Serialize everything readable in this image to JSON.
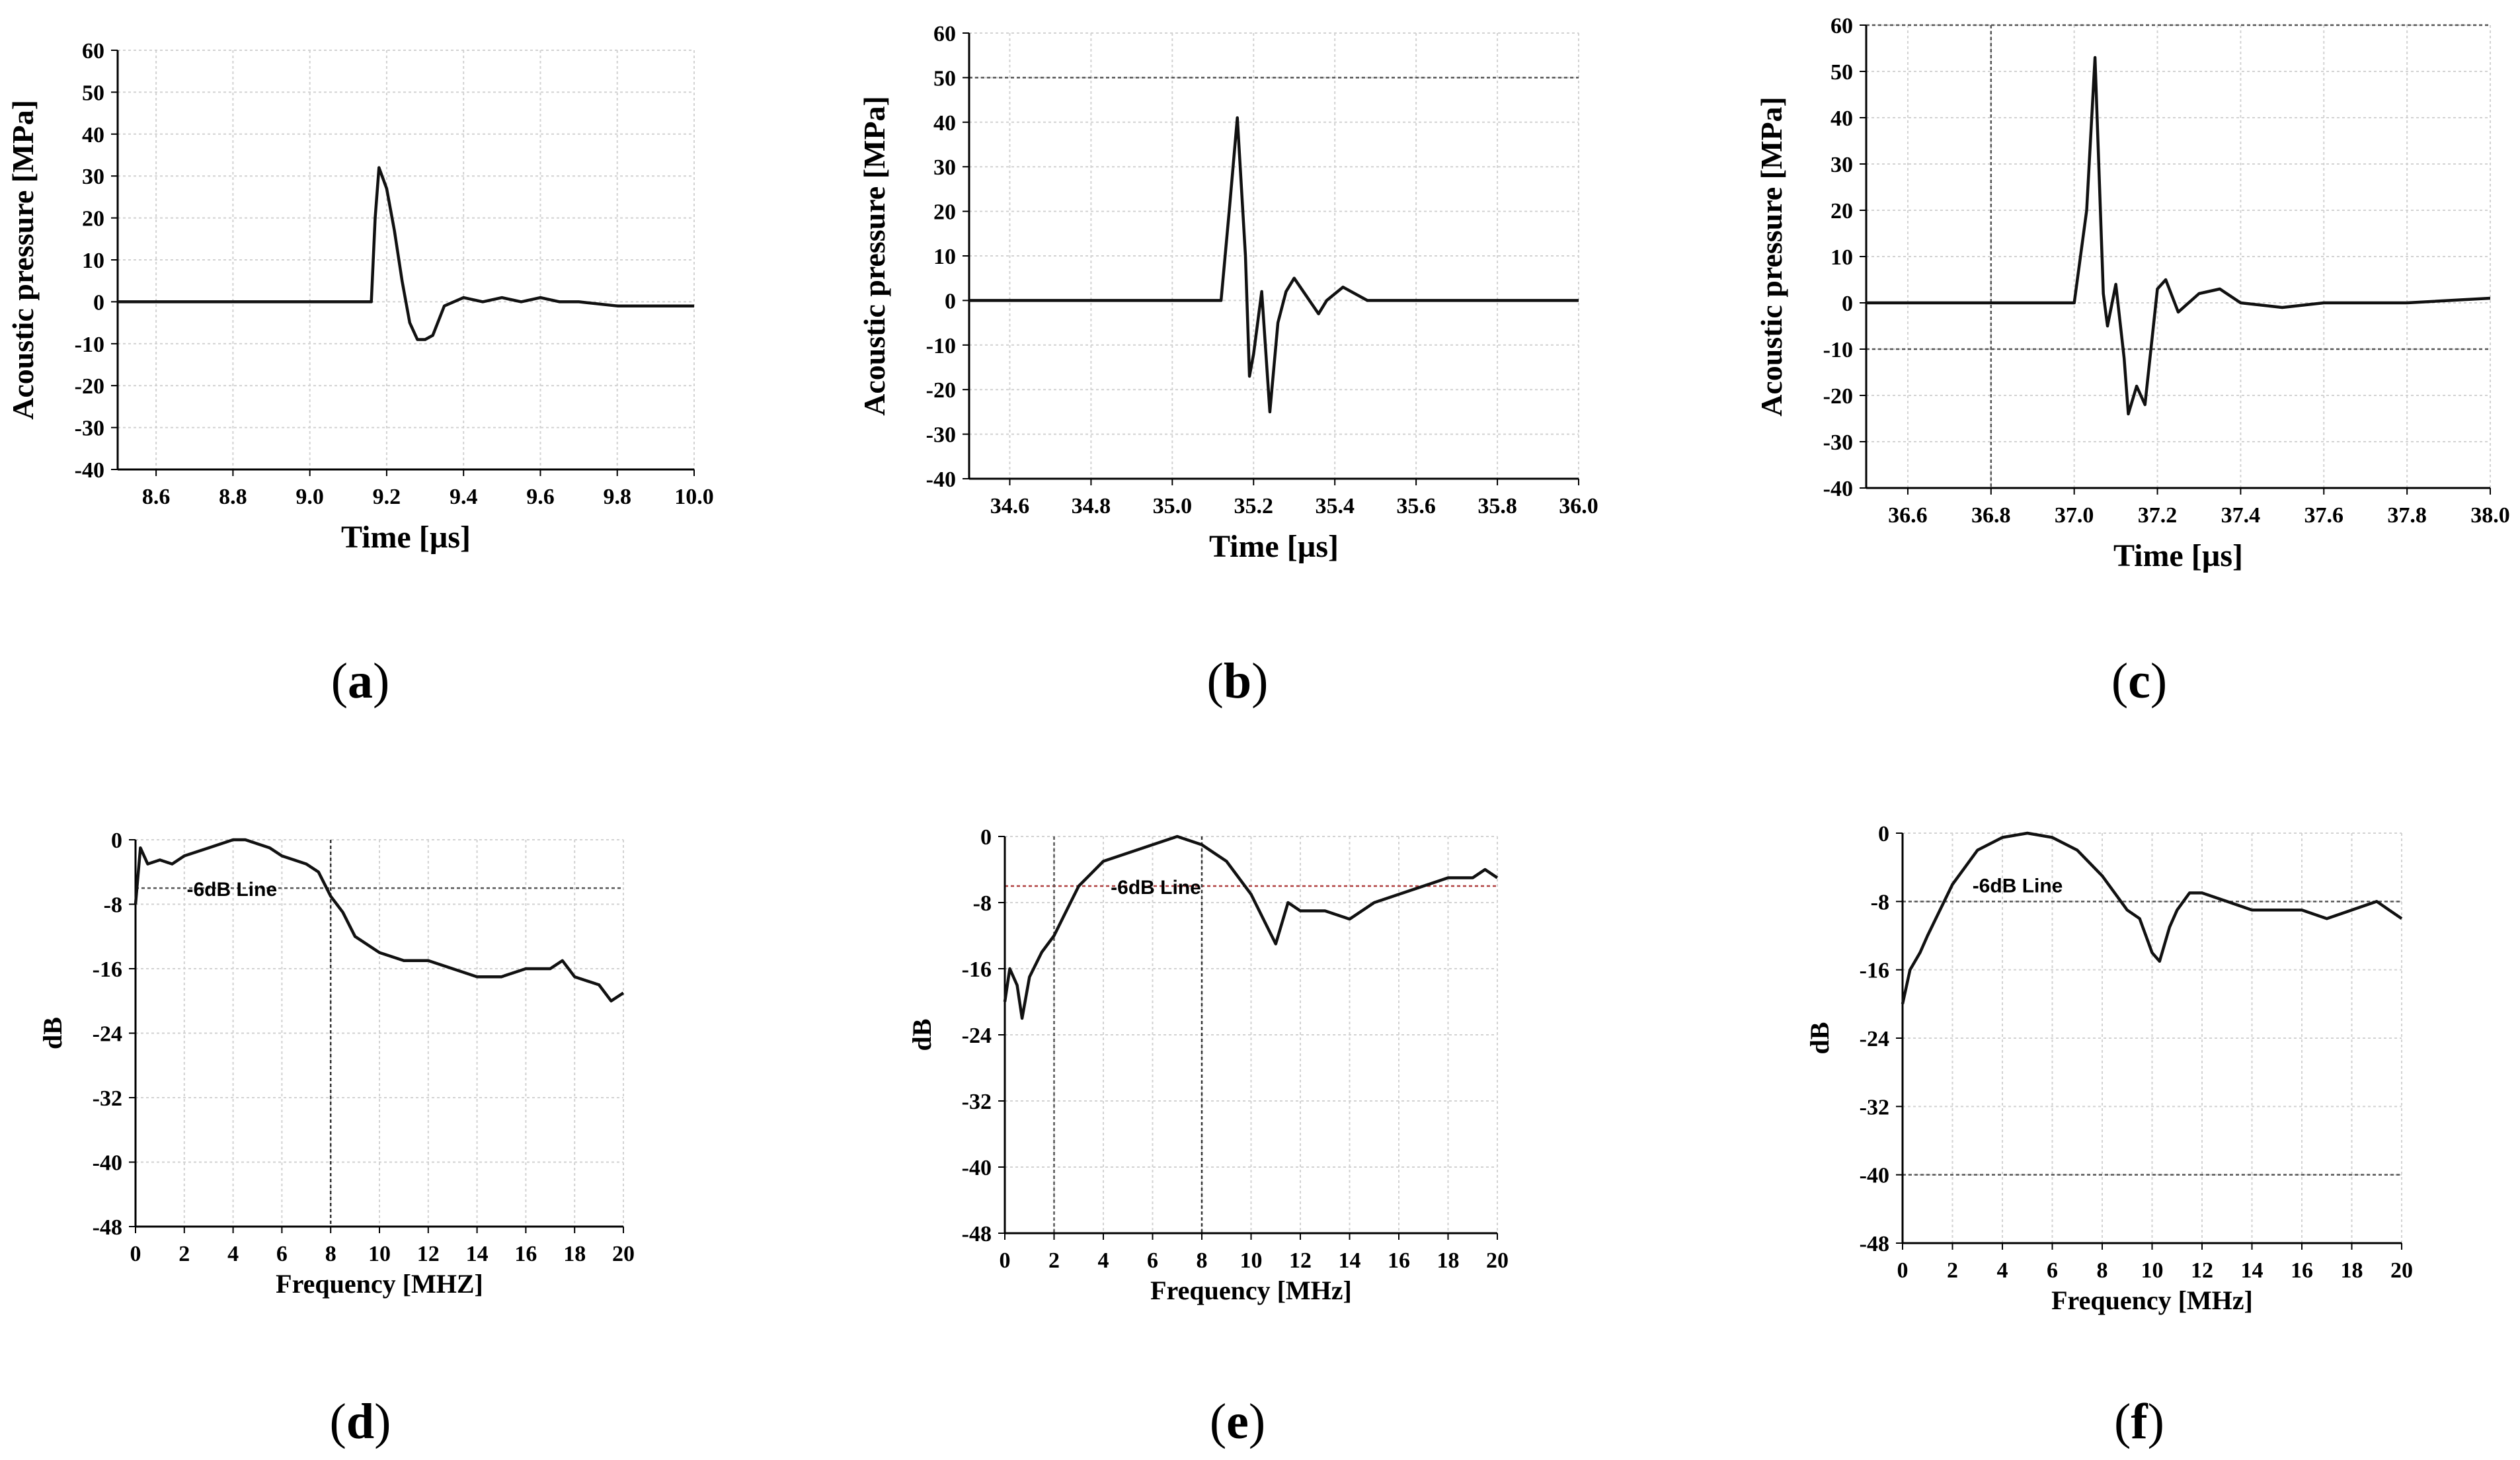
{
  "figure": {
    "panels": [
      {
        "id": "a",
        "label": "(a)",
        "letter": "a"
      },
      {
        "id": "b",
        "label": "(b)",
        "letter": "b"
      },
      {
        "id": "c",
        "label": "(c)",
        "letter": "c"
      },
      {
        "id": "d",
        "label": "(d)",
        "letter": "d"
      },
      {
        "id": "e",
        "label": "(e)",
        "letter": "e"
      },
      {
        "id": "f",
        "label": "(f)",
        "letter": "f"
      }
    ]
  },
  "chart_data": [
    {
      "id": "a",
      "type": "line",
      "title": "",
      "xlabel": "Time [µs]",
      "ylabel": "Acoustic pressure [MPa]",
      "xlim": [
        8.5,
        10.0
      ],
      "ylim": [
        -40,
        60
      ],
      "xticks": [
        8.6,
        8.8,
        9.0,
        9.2,
        9.4,
        9.6,
        9.8,
        10.0
      ],
      "xtick_labels": [
        "8.6",
        "8.8",
        "9.0",
        "9.2",
        "9.4",
        "9.6",
        "9.8",
        "10.0"
      ],
      "yticks": [
        -40,
        -30,
        -20,
        -10,
        0,
        10,
        20,
        30,
        40,
        50,
        60
      ],
      "ytick_labels": [
        "-40",
        "-30",
        "-20",
        "-10",
        "0",
        "10",
        "20",
        "30",
        "40",
        "50",
        "60"
      ],
      "grid": true,
      "series": [
        {
          "name": "pressure",
          "x": [
            8.5,
            8.8,
            9.0,
            9.1,
            9.16,
            9.17,
            9.18,
            9.2,
            9.22,
            9.24,
            9.26,
            9.28,
            9.3,
            9.32,
            9.35,
            9.4,
            9.45,
            9.5,
            9.55,
            9.6,
            9.65,
            9.7,
            9.8,
            9.9,
            10.0
          ],
          "y": [
            0,
            0,
            0,
            0,
            0,
            20,
            32,
            27,
            17,
            5,
            -5,
            -9,
            -9,
            -8,
            -1,
            1,
            0,
            1,
            0,
            1,
            0,
            0,
            -1,
            -1,
            -1
          ]
        }
      ],
      "hlines": [],
      "vlines": [],
      "annotations": []
    },
    {
      "id": "b",
      "type": "line",
      "title": "",
      "xlabel": "Time [µs]",
      "ylabel": "Acoustic pressure [MPa]",
      "xlim": [
        34.5,
        36.0
      ],
      "ylim": [
        -40,
        60
      ],
      "xticks": [
        34.6,
        34.8,
        35.0,
        35.2,
        35.4,
        35.6,
        35.8,
        36.0
      ],
      "xtick_labels": [
        "34.6",
        "34.8",
        "35.0",
        "35.2",
        "35.4",
        "35.6",
        "35.8",
        "36.0"
      ],
      "yticks": [
        -40,
        -30,
        -20,
        -10,
        0,
        10,
        20,
        30,
        40,
        50,
        60
      ],
      "ytick_labels": [
        "-40",
        "-30",
        "-20",
        "-10",
        "0",
        "10",
        "20",
        "30",
        "40",
        "50",
        "60"
      ],
      "grid": true,
      "series": [
        {
          "name": "pressure",
          "x": [
            34.5,
            34.7,
            34.9,
            35.05,
            35.12,
            35.14,
            35.16,
            35.18,
            35.19,
            35.2,
            35.22,
            35.24,
            35.26,
            35.28,
            35.3,
            35.33,
            35.36,
            35.38,
            35.42,
            35.48,
            35.6,
            35.75,
            35.9,
            36.0
          ],
          "y": [
            0,
            0,
            0,
            0,
            0,
            20,
            41,
            10,
            -17,
            -12,
            2,
            -25,
            -5,
            2,
            5,
            1,
            -3,
            0,
            3,
            0,
            0,
            0,
            0,
            0
          ]
        }
      ],
      "hlines": [
        {
          "y": 50,
          "color": "#555555"
        }
      ],
      "vlines": [],
      "annotations": []
    },
    {
      "id": "c",
      "type": "line",
      "title": "",
      "xlabel": "Time [µs]",
      "ylabel": "Acoustic pressure [MPa]",
      "xlim": [
        36.5,
        38.0
      ],
      "ylim": [
        -40,
        60
      ],
      "xticks": [
        36.6,
        36.8,
        37.0,
        37.2,
        37.4,
        37.6,
        37.8,
        38.0
      ],
      "xtick_labels": [
        "36.6",
        "36.8",
        "37.0",
        "37.2",
        "37.4",
        "37.6",
        "37.8",
        "38.0"
      ],
      "yticks": [
        -40,
        -30,
        -20,
        -10,
        0,
        10,
        20,
        30,
        40,
        50,
        60
      ],
      "ytick_labels": [
        "-40",
        "-30",
        "-20",
        "-10",
        "0",
        "10",
        "20",
        "30",
        "40",
        "50",
        "60"
      ],
      "grid": true,
      "series": [
        {
          "name": "pressure",
          "x": [
            36.5,
            36.7,
            36.9,
            37.0,
            37.03,
            37.05,
            37.07,
            37.08,
            37.1,
            37.12,
            37.13,
            37.15,
            37.17,
            37.2,
            37.22,
            37.25,
            37.3,
            37.35,
            37.4,
            37.5,
            37.6,
            37.8,
            38.0
          ],
          "y": [
            0,
            0,
            0,
            0,
            20,
            53,
            2,
            -5,
            4,
            -12,
            -24,
            -18,
            -22,
            3,
            5,
            -2,
            2,
            3,
            0,
            -1,
            0,
            0,
            1
          ]
        }
      ],
      "hlines": [
        {
          "y": 60,
          "color": "#555555"
        },
        {
          "y": -10,
          "color": "#555555"
        }
      ],
      "vlines": [
        {
          "x": 36.8,
          "color": "#555555"
        }
      ],
      "annotations": []
    },
    {
      "id": "d",
      "type": "line",
      "title": "",
      "xlabel": "Frequency [MHZ]",
      "ylabel": "dB",
      "xlim": [
        0,
        20
      ],
      "ylim": [
        -48,
        0
      ],
      "xticks": [
        0,
        2,
        4,
        6,
        8,
        10,
        12,
        14,
        16,
        18,
        20
      ],
      "xtick_labels": [
        "0",
        "2",
        "4",
        "6",
        "8",
        "10",
        "12",
        "14",
        "16",
        "18",
        "20"
      ],
      "yticks": [
        -48,
        -40,
        -32,
        -24,
        -16,
        -8,
        0
      ],
      "ytick_labels": [
        "-48",
        "-40",
        "-32",
        "-24",
        "-16",
        "-8",
        "0"
      ],
      "grid": true,
      "series": [
        {
          "name": "spectrum",
          "x": [
            0,
            0.2,
            0.5,
            1,
            1.5,
            2,
            3,
            4,
            4.5,
            5,
            5.5,
            6,
            6.5,
            7,
            7.5,
            8,
            8.5,
            9,
            10,
            11,
            12,
            13,
            14,
            15,
            16,
            17,
            17.5,
            18,
            19,
            19.5,
            20
          ],
          "y": [
            -8,
            -1,
            -3,
            -2.5,
            -3,
            -2,
            -1,
            0,
            0,
            -0.5,
            -1,
            -2,
            -2.5,
            -3,
            -4,
            -7,
            -9,
            -12,
            -14,
            -15,
            -15,
            -16,
            -17,
            -17,
            -16,
            -16,
            -15,
            -17,
            -18,
            -20,
            -19
          ]
        }
      ],
      "hlines": [
        {
          "y": -6,
          "color": "#555555"
        }
      ],
      "vlines": [
        {
          "x": 8,
          "color": "#333333"
        }
      ],
      "annotations": [
        {
          "text": "-6dB Line",
          "x": 2.1,
          "y": -6
        }
      ]
    },
    {
      "id": "e",
      "type": "line",
      "title": "",
      "xlabel": "Frequency [MHz]",
      "ylabel": "dB",
      "xlim": [
        0,
        20
      ],
      "ylim": [
        -48,
        0
      ],
      "xticks": [
        0,
        2,
        4,
        6,
        8,
        10,
        12,
        14,
        16,
        18,
        20
      ],
      "xtick_labels": [
        "0",
        "2",
        "4",
        "6",
        "8",
        "10",
        "12",
        "14",
        "16",
        "18",
        "20"
      ],
      "yticks": [
        -48,
        -40,
        -32,
        -24,
        -16,
        -8,
        0
      ],
      "ytick_labels": [
        "-48",
        "-40",
        "-32",
        "-24",
        "-16",
        "-8",
        "0"
      ],
      "grid": true,
      "series": [
        {
          "name": "spectrum",
          "x": [
            0,
            0.2,
            0.5,
            0.7,
            1,
            1.5,
            2,
            2.5,
            3,
            4,
            5,
            6,
            7,
            8,
            8.5,
            9,
            9.5,
            10,
            10.5,
            11,
            11.5,
            12,
            13,
            14,
            15,
            16,
            17,
            18,
            19,
            19.5,
            20
          ],
          "y": [
            -20,
            -16,
            -18,
            -22,
            -17,
            -14,
            -12,
            -9,
            -6,
            -3,
            -2,
            -1,
            0,
            -1,
            -2,
            -3,
            -5,
            -7,
            -10,
            -13,
            -8,
            -9,
            -9,
            -10,
            -8,
            -7,
            -6,
            -5,
            -5,
            -4,
            -5
          ]
        }
      ],
      "hlines": [
        {
          "y": -6,
          "color": "#b04040"
        }
      ],
      "vlines": [
        {
          "x": 2,
          "color": "#555555"
        },
        {
          "x": 8,
          "color": "#333333"
        }
      ],
      "annotations": [
        {
          "text": "-6dB Line",
          "x": 4.3,
          "y": -6
        }
      ]
    },
    {
      "id": "f",
      "type": "line",
      "title": "",
      "xlabel": "Frequency [MHz]",
      "ylabel": "dB",
      "xlim": [
        0,
        20
      ],
      "ylim": [
        -48,
        0
      ],
      "xticks": [
        0,
        2,
        4,
        6,
        8,
        10,
        12,
        14,
        16,
        18,
        20
      ],
      "xtick_labels": [
        "0",
        "2",
        "4",
        "6",
        "8",
        "10",
        "12",
        "14",
        "16",
        "18",
        "20"
      ],
      "yticks": [
        -48,
        -40,
        -32,
        -24,
        -16,
        -8,
        0
      ],
      "ytick_labels": [
        "-48",
        "-40",
        "-32",
        "-24",
        "-16",
        "-8",
        "0"
      ],
      "grid": true,
      "series": [
        {
          "name": "spectrum",
          "x": [
            0,
            0.3,
            0.7,
            1,
            1.5,
            2,
            2.5,
            3,
            4,
            5,
            6,
            7,
            8,
            8.5,
            9,
            9.5,
            10,
            10.3,
            10.7,
            11,
            11.5,
            12,
            13,
            14,
            15,
            16,
            17,
            18,
            19,
            19.5,
            20
          ],
          "y": [
            -20,
            -16,
            -14,
            -12,
            -9,
            -6,
            -4,
            -2,
            -0.5,
            0,
            -0.5,
            -2,
            -5,
            -7,
            -9,
            -10,
            -14,
            -15,
            -11,
            -9,
            -7,
            -7,
            -8,
            -9,
            -9,
            -9,
            -10,
            -9,
            -8,
            -9,
            -10
          ]
        }
      ],
      "hlines": [
        {
          "y": -8,
          "color": "#555555"
        },
        {
          "y": -40,
          "color": "#555555"
        }
      ],
      "vlines": [],
      "annotations": [
        {
          "text": "-6dB Line",
          "x": 2.8,
          "y": -6
        }
      ]
    }
  ]
}
